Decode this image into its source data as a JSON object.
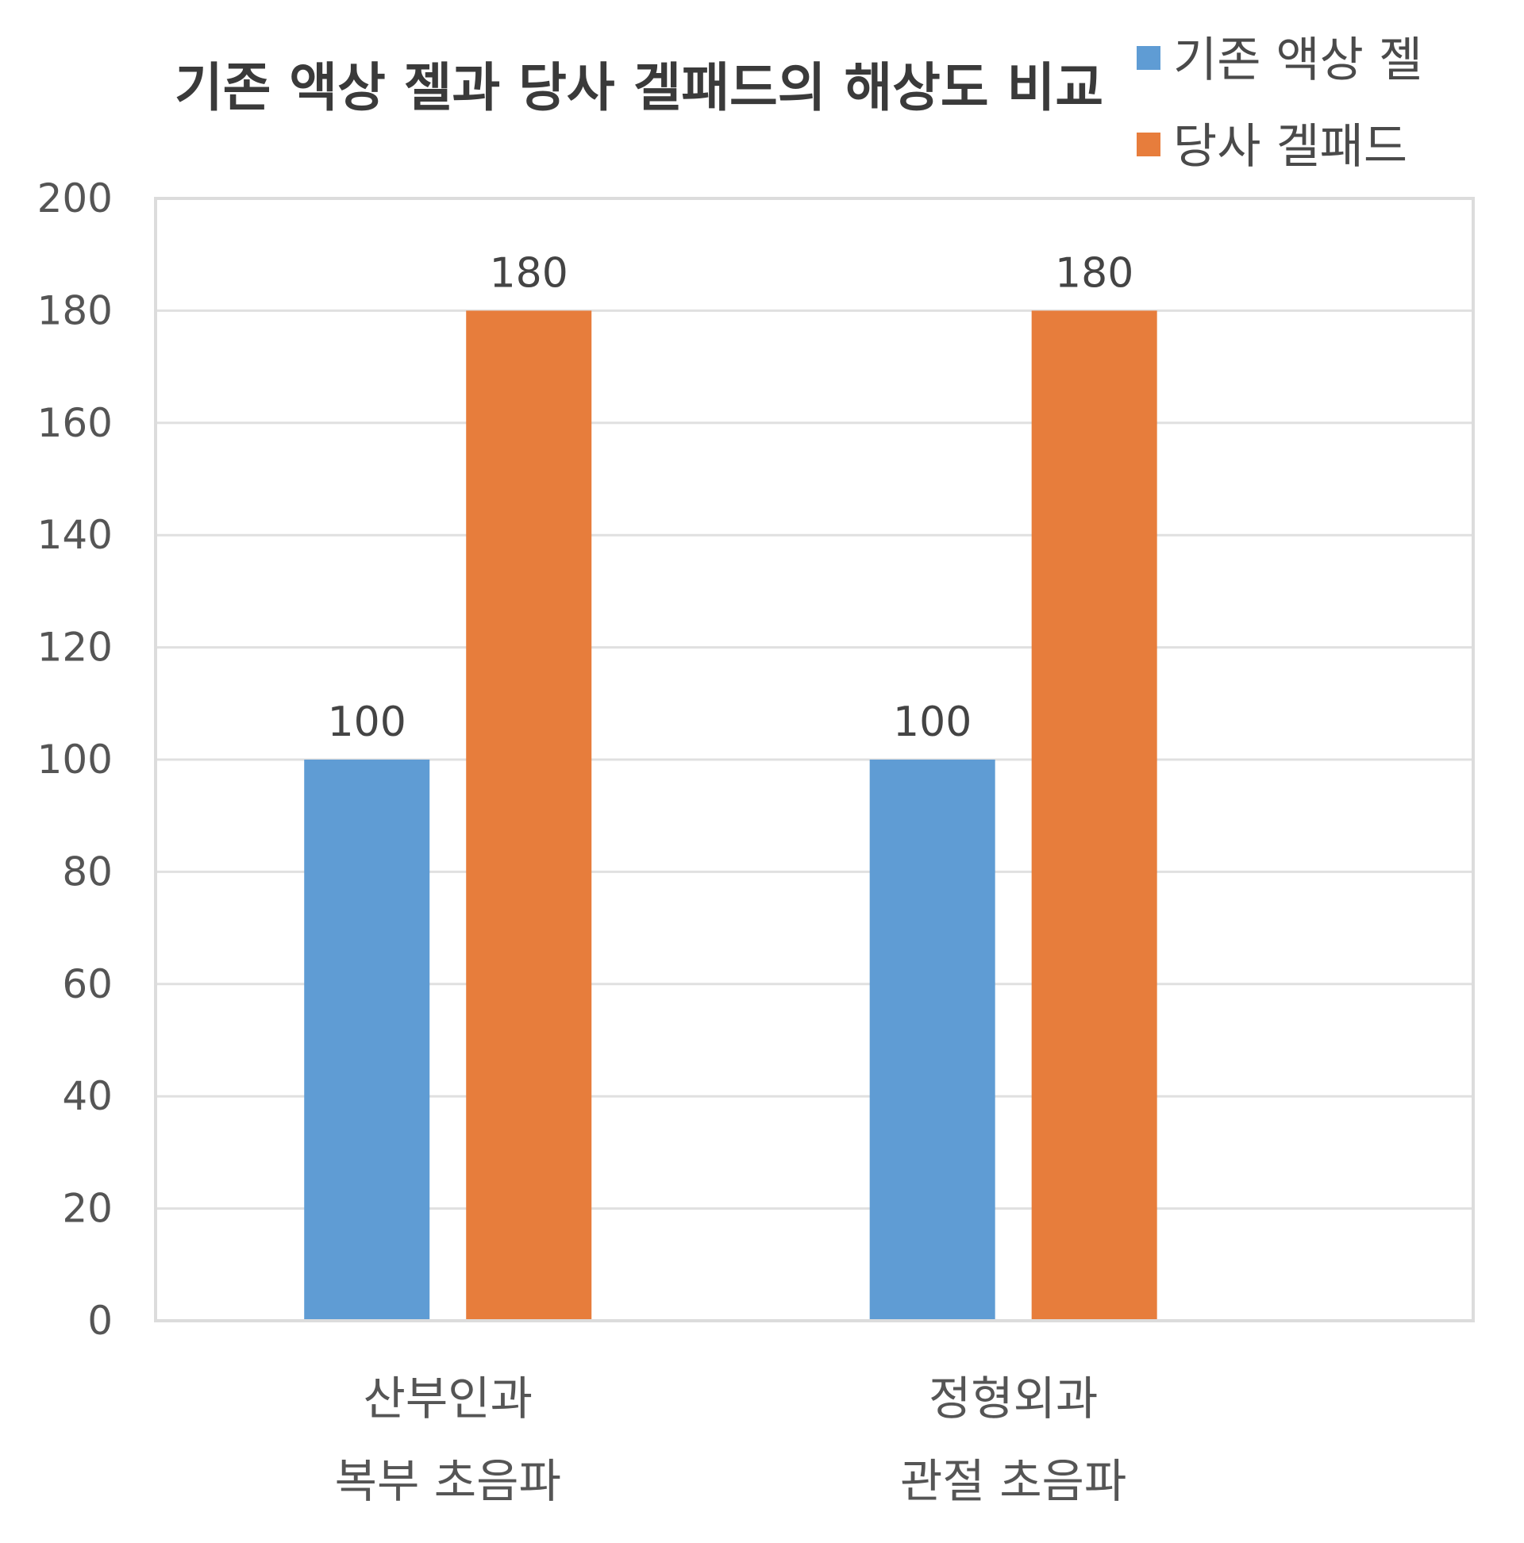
{
  "chart_data": {
    "type": "bar",
    "title": "기존 액상 젤과 당사 겔패드의 해상도 비교",
    "xlabel": "",
    "ylabel": "",
    "ylim": [
      0,
      200
    ],
    "yticks": [
      "0",
      "20",
      "40",
      "60",
      "80",
      "100",
      "120",
      "140",
      "160",
      "180",
      "200"
    ],
    "categories": [
      [
        "산부인과",
        "복부 초음파"
      ],
      [
        "정형외과",
        "관절 초음파"
      ]
    ],
    "series": [
      {
        "name": "기존 액상 젤",
        "color": "#5f9cd4",
        "values": [
          100,
          100
        ],
        "labels": [
          "100",
          "100"
        ]
      },
      {
        "name": "당사 겔패드",
        "color": "#e77d3c",
        "values": [
          180,
          180
        ],
        "labels": [
          "180",
          "180"
        ]
      }
    ],
    "grid": true,
    "legend_position": "top-right"
  }
}
